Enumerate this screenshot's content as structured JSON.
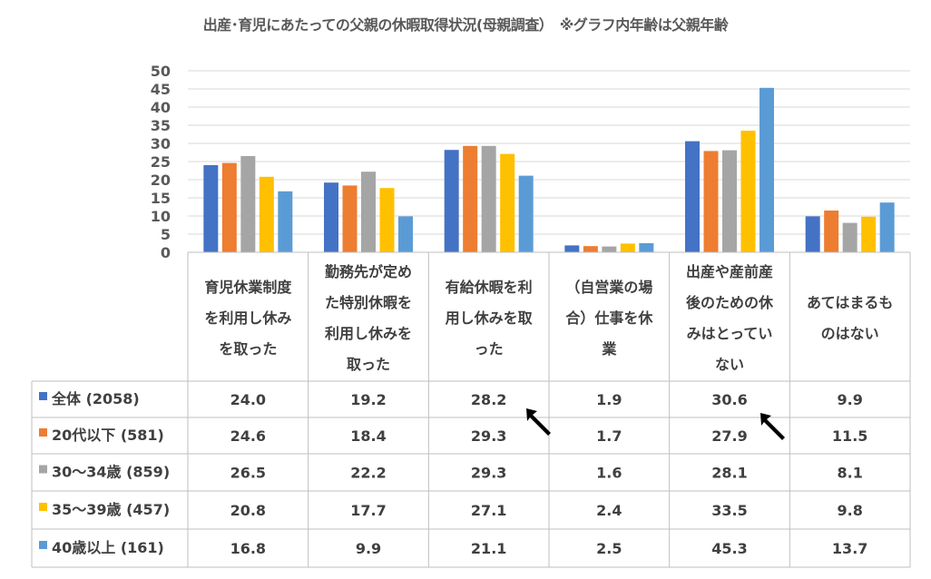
{
  "chart_data": {
    "type": "bar",
    "title": "出産･育児にあたっての父親の休暇取得状況(母親調査）　※グラフ内年齢は父親年齢",
    "categories": [
      "育児休業制度を利用し休みを取った",
      "勤務先が定めた特別休暇を利用し休みを取った",
      "有給休暇を利用し休みを取った",
      "（自営業の場合）仕事を休業",
      "出産や産前産後のための休みはとっていない",
      "あてはまるものはない"
    ],
    "series": [
      {
        "name": "全体 (2058)",
        "color": "#4472C4",
        "values": [
          24.0,
          19.2,
          28.2,
          1.9,
          30.6,
          9.9
        ]
      },
      {
        "name": "20代以下 (581)",
        "color": "#ED7D31",
        "values": [
          24.6,
          18.4,
          29.3,
          1.7,
          27.9,
          11.5
        ]
      },
      {
        "name": "30～34歳 (859)",
        "color": "#A5A5A5",
        "values": [
          26.5,
          22.2,
          29.3,
          1.6,
          28.1,
          8.1
        ]
      },
      {
        "name": "35～39歳 (457)",
        "color": "#FFC000",
        "values": [
          20.8,
          17.7,
          27.1,
          2.4,
          33.5,
          9.8
        ]
      },
      {
        "name": "40歳以上 (161)",
        "color": "#5B9BD5",
        "values": [
          16.8,
          9.9,
          21.1,
          2.5,
          45.3,
          13.7
        ]
      }
    ],
    "ylim": [
      0,
      50
    ],
    "yticks": [
      "0",
      "5",
      "10",
      "15",
      "20",
      "25",
      "30",
      "35",
      "40",
      "45",
      "50"
    ],
    "grid": true,
    "legend": "data-table",
    "annotations": [
      "cursor-arrow at 有給休暇 全体",
      "cursor-arrow at 出産や産前産後 全体"
    ]
  }
}
